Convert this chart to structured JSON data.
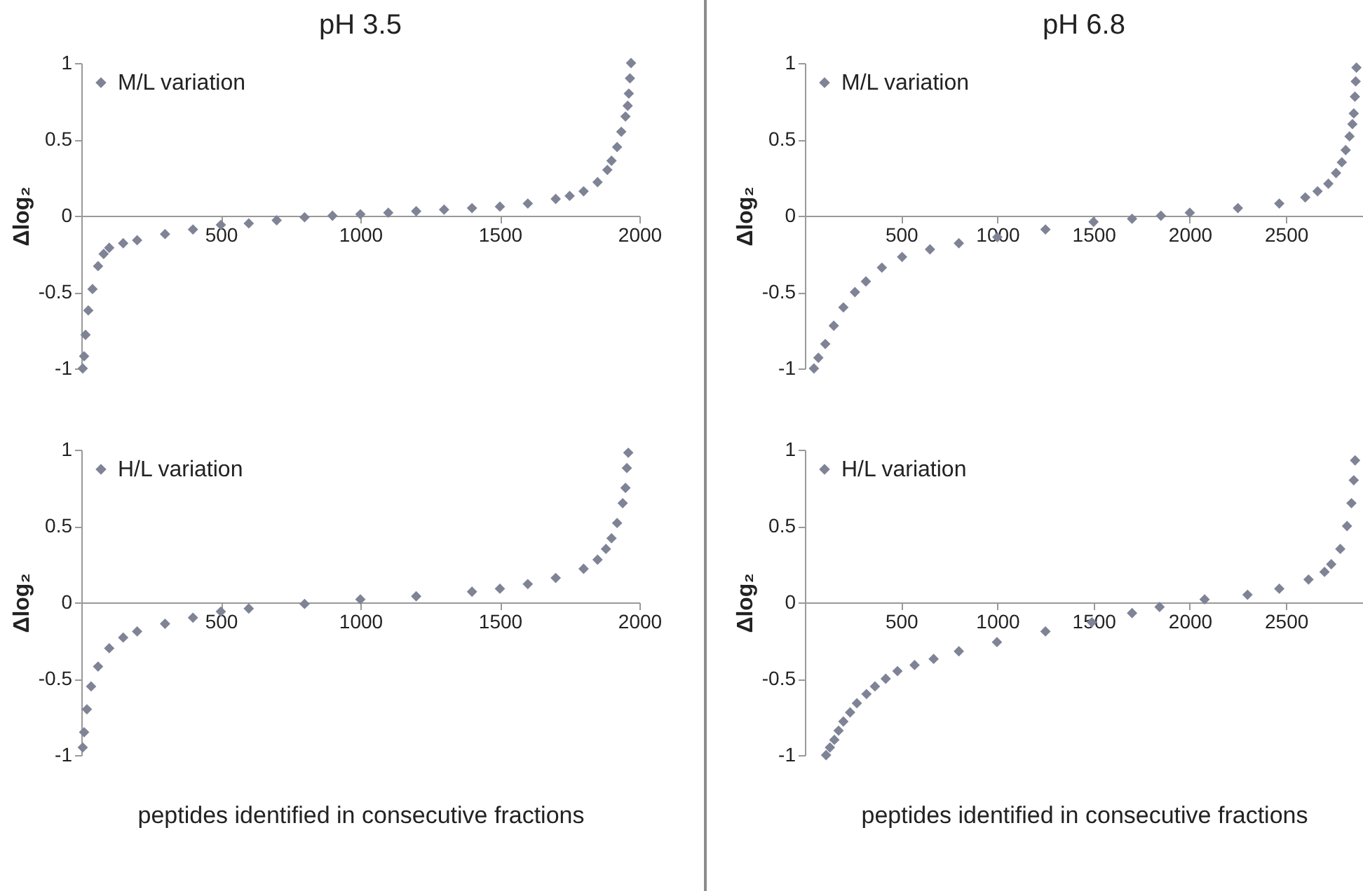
{
  "chart_data": [
    {
      "type": "scatter",
      "title": "pH 3.5",
      "ylabel": "Δlog₂",
      "xlim": [
        0,
        2000
      ],
      "xticks": [
        500,
        1000,
        1500,
        2000
      ],
      "ylim": [
        -1,
        1
      ],
      "yticks": [
        -1,
        -0.5,
        0,
        0.5,
        1
      ],
      "legend": "top left",
      "marker": "diamond",
      "series": [
        {
          "name": "M/L variation",
          "color": "#7f8396",
          "x": [
            5,
            10,
            15,
            25,
            40,
            60,
            80,
            100,
            150,
            200,
            300,
            400,
            500,
            600,
            700,
            800,
            900,
            1000,
            1100,
            1200,
            1300,
            1400,
            1500,
            1600,
            1700,
            1750,
            1800,
            1850,
            1885,
            1900,
            1920,
            1935,
            1950,
            1958,
            1962,
            1966,
            1970
          ],
          "values": [
            -1,
            -0.92,
            -0.78,
            -0.62,
            -0.48,
            -0.33,
            -0.25,
            -0.21,
            -0.18,
            -0.16,
            -0.12,
            -0.09,
            -0.06,
            -0.05,
            -0.03,
            -0.01,
            0,
            0.01,
            0.02,
            0.03,
            0.04,
            0.05,
            0.06,
            0.08,
            0.11,
            0.13,
            0.16,
            0.22,
            0.3,
            0.36,
            0.45,
            0.55,
            0.65,
            0.72,
            0.8,
            0.9,
            1
          ]
        }
      ]
    },
    {
      "type": "scatter",
      "title": "pH 6.8",
      "ylabel": "Δlog₂",
      "xlim": [
        0,
        2900
      ],
      "xticks": [
        500,
        1000,
        1500,
        2000,
        2500
      ],
      "ylim": [
        -1,
        1
      ],
      "yticks": [
        -1,
        -0.5,
        0,
        0.5,
        1
      ],
      "legend": "top left",
      "marker": "diamond",
      "series": [
        {
          "name": "M/L variation",
          "color": "#7f8396",
          "x": [
            47,
            70,
            106,
            150,
            200,
            260,
            317,
            400,
            505,
            650,
            800,
            1000,
            1250,
            1500,
            1700,
            1850,
            2000,
            2250,
            2465,
            2600,
            2664,
            2720,
            2760,
            2790,
            2810,
            2830,
            2845,
            2852,
            2858,
            2862,
            2866
          ],
          "values": [
            -1,
            -0.93,
            -0.84,
            -0.72,
            -0.6,
            -0.5,
            -0.43,
            -0.34,
            -0.27,
            -0.22,
            -0.18,
            -0.14,
            -0.09,
            -0.04,
            -0.02,
            0,
            0.02,
            0.05,
            0.08,
            0.12,
            0.16,
            0.21,
            0.28,
            0.35,
            0.43,
            0.52,
            0.6,
            0.67,
            0.78,
            0.88,
            0.97
          ]
        }
      ]
    },
    {
      "type": "scatter",
      "ylabel": "Δlog₂",
      "xlabel": "peptides identified in consecutive fractions",
      "xlim": [
        0,
        2000
      ],
      "xticks": [
        500,
        1000,
        1500,
        2000
      ],
      "ylim": [
        -1,
        1
      ],
      "yticks": [
        -1,
        -0.5,
        0,
        0.5,
        1
      ],
      "legend": "top left",
      "marker": "diamond",
      "series": [
        {
          "name": "H/L variation",
          "color": "#7f8396",
          "x": [
            5,
            10,
            20,
            35,
            60,
            100,
            150,
            200,
            300,
            400,
            500,
            600,
            800,
            1000,
            1200,
            1400,
            1500,
            1600,
            1700,
            1800,
            1850,
            1880,
            1900,
            1920,
            1940,
            1950,
            1955,
            1960
          ],
          "values": [
            -0.95,
            -0.85,
            -0.7,
            -0.55,
            -0.42,
            -0.3,
            -0.23,
            -0.19,
            -0.14,
            -0.1,
            -0.06,
            -0.04,
            -0.01,
            0.02,
            0.04,
            0.07,
            0.09,
            0.12,
            0.16,
            0.22,
            0.28,
            0.35,
            0.42,
            0.52,
            0.65,
            0.75,
            0.88,
            0.98
          ]
        }
      ]
    },
    {
      "type": "scatter",
      "ylabel": "Δlog₂",
      "xlabel": "peptides identified in consecutive fractions",
      "xlim": [
        0,
        2900
      ],
      "xticks": [
        500,
        1000,
        1500,
        2000,
        2500
      ],
      "ylim": [
        -1,
        1
      ],
      "yticks": [
        -1,
        -0.5,
        0,
        0.5,
        1
      ],
      "legend": "top left",
      "marker": "diamond",
      "series": [
        {
          "name": "H/L variation",
          "color": "#7f8396",
          "x": [
            110,
            130,
            153,
            175,
            200,
            235,
            270,
            320,
            364,
            420,
            481,
            570,
            669,
            800,
            998,
            1250,
            1491,
            1700,
            1843,
            2077,
            2300,
            2465,
            2617,
            2700,
            2735,
            2782,
            2817,
            2840,
            2852,
            2859
          ],
          "values": [
            -1,
            -0.95,
            -0.9,
            -0.84,
            -0.78,
            -0.72,
            -0.66,
            -0.6,
            -0.55,
            -0.5,
            -0.45,
            -0.41,
            -0.37,
            -0.32,
            -0.26,
            -0.19,
            -0.13,
            -0.07,
            -0.03,
            0.02,
            0.05,
            0.09,
            0.15,
            0.2,
            0.25,
            0.35,
            0.5,
            0.65,
            0.8,
            0.93
          ]
        }
      ]
    }
  ]
}
